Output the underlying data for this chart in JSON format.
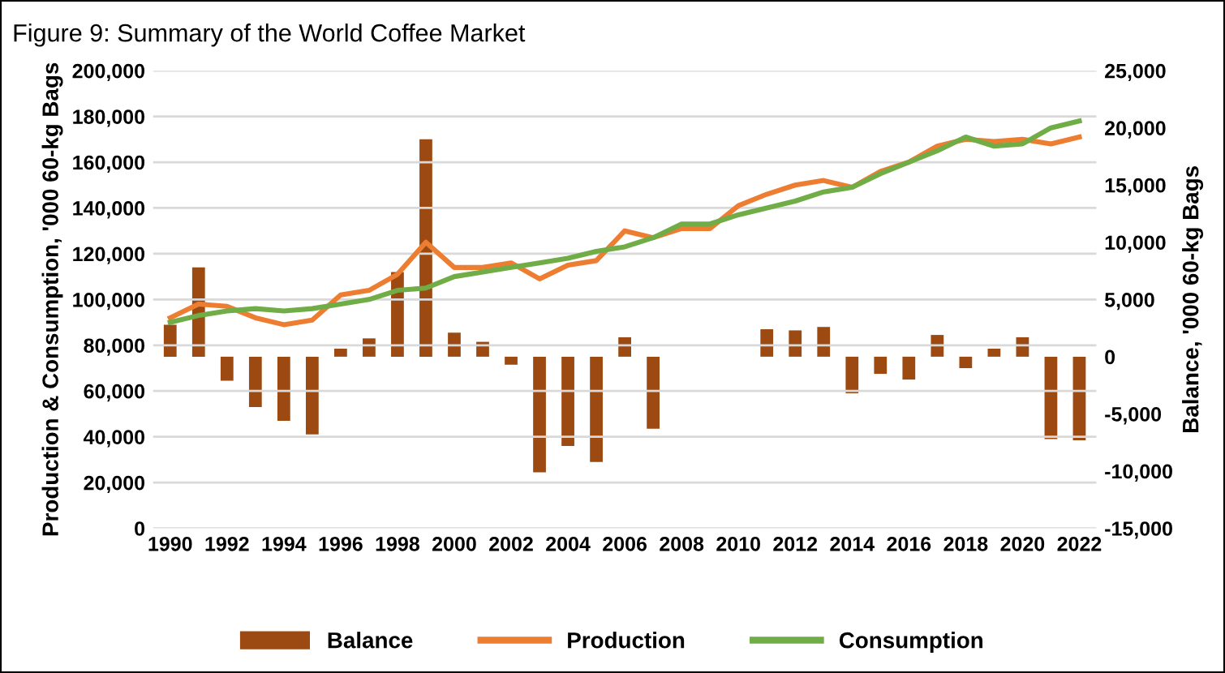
{
  "chart_data": {
    "type": "bar",
    "title": "Figure 9: Summary of the World Coffee Market",
    "ylabel": "Production & Consumption, '000 60-kg Bags",
    "y2label": "Balance, '000 60-kg Bags",
    "categories": [
      "1990",
      null,
      "1992",
      null,
      "1994",
      null,
      "1996",
      null,
      "1998",
      null,
      "2000",
      null,
      "2002",
      null,
      "2004",
      null,
      "2006",
      null,
      "2008",
      null,
      "2010",
      null,
      "2012",
      null,
      "2014",
      null,
      "2016",
      null,
      "2018",
      null,
      "2020",
      null,
      "2022"
    ],
    "series": [
      {
        "name": "Balance",
        "axis": "y2",
        "color": "#9c4a12",
        "values": [
          2800,
          7800,
          -2100,
          -4400,
          -5600,
          -6800,
          700,
          1600,
          7400,
          19000,
          2100,
          1300,
          -700,
          -10100,
          -7800,
          -9200,
          1700,
          -6300,
          null,
          null,
          null,
          2400,
          2300,
          2600,
          -3200,
          -1500,
          -2000,
          1900,
          -1000,
          700,
          1700,
          -7200,
          -7300
        ]
      },
      {
        "name": "Production",
        "type": "line",
        "color": "#ed7d31",
        "values": [
          92000,
          98000,
          97000,
          92000,
          89000,
          91000,
          102000,
          104000,
          111000,
          125000,
          114000,
          114000,
          116000,
          109000,
          115000,
          117000,
          130000,
          127000,
          131000,
          131000,
          141000,
          146000,
          150000,
          152000,
          149000,
          156000,
          160000,
          167000,
          170000,
          169000,
          170000,
          168000,
          171000
        ]
      },
      {
        "name": "Consumption",
        "type": "line",
        "color": "#70ad47",
        "values": [
          90000,
          93000,
          95000,
          96000,
          95000,
          96000,
          98000,
          100000,
          104000,
          105000,
          110000,
          112000,
          114000,
          116000,
          118000,
          121000,
          123000,
          127000,
          133000,
          133000,
          137000,
          140000,
          143000,
          147000,
          149000,
          155000,
          160000,
          165000,
          171000,
          167000,
          168000,
          175000,
          178000
        ]
      }
    ],
    "ylim": [
      0,
      200000
    ],
    "yticks": [
      {
        "value": 0,
        "label": "0"
      },
      {
        "value": 20000,
        "label": "20,000"
      },
      {
        "value": 40000,
        "label": "40,000"
      },
      {
        "value": 60000,
        "label": "60,000"
      },
      {
        "value": 80000,
        "label": "80,000"
      },
      {
        "value": 100000,
        "label": "100,000"
      },
      {
        "value": 120000,
        "label": "120,000"
      },
      {
        "value": 140000,
        "label": "140,000"
      },
      {
        "value": 160000,
        "label": "160,000"
      },
      {
        "value": 180000,
        "label": "180,000"
      },
      {
        "value": 200000,
        "label": "200,000"
      }
    ],
    "y2lim": [
      -15000,
      25000
    ],
    "y2ticks": [
      {
        "value": -15000,
        "label": "-15,000"
      },
      {
        "value": -10000,
        "label": "-10,000"
      },
      {
        "value": -5000,
        "label": "-5,000"
      },
      {
        "value": 0,
        "label": "0"
      },
      {
        "value": 5000,
        "label": "5,000"
      },
      {
        "value": 10000,
        "label": "10,000"
      },
      {
        "value": 15000,
        "label": "15,000"
      },
      {
        "value": 20000,
        "label": "20,000"
      },
      {
        "value": 25000,
        "label": "25,000"
      }
    ],
    "grid": "y",
    "legend": "bottom",
    "line_style": "solid",
    "marker": "none"
  }
}
